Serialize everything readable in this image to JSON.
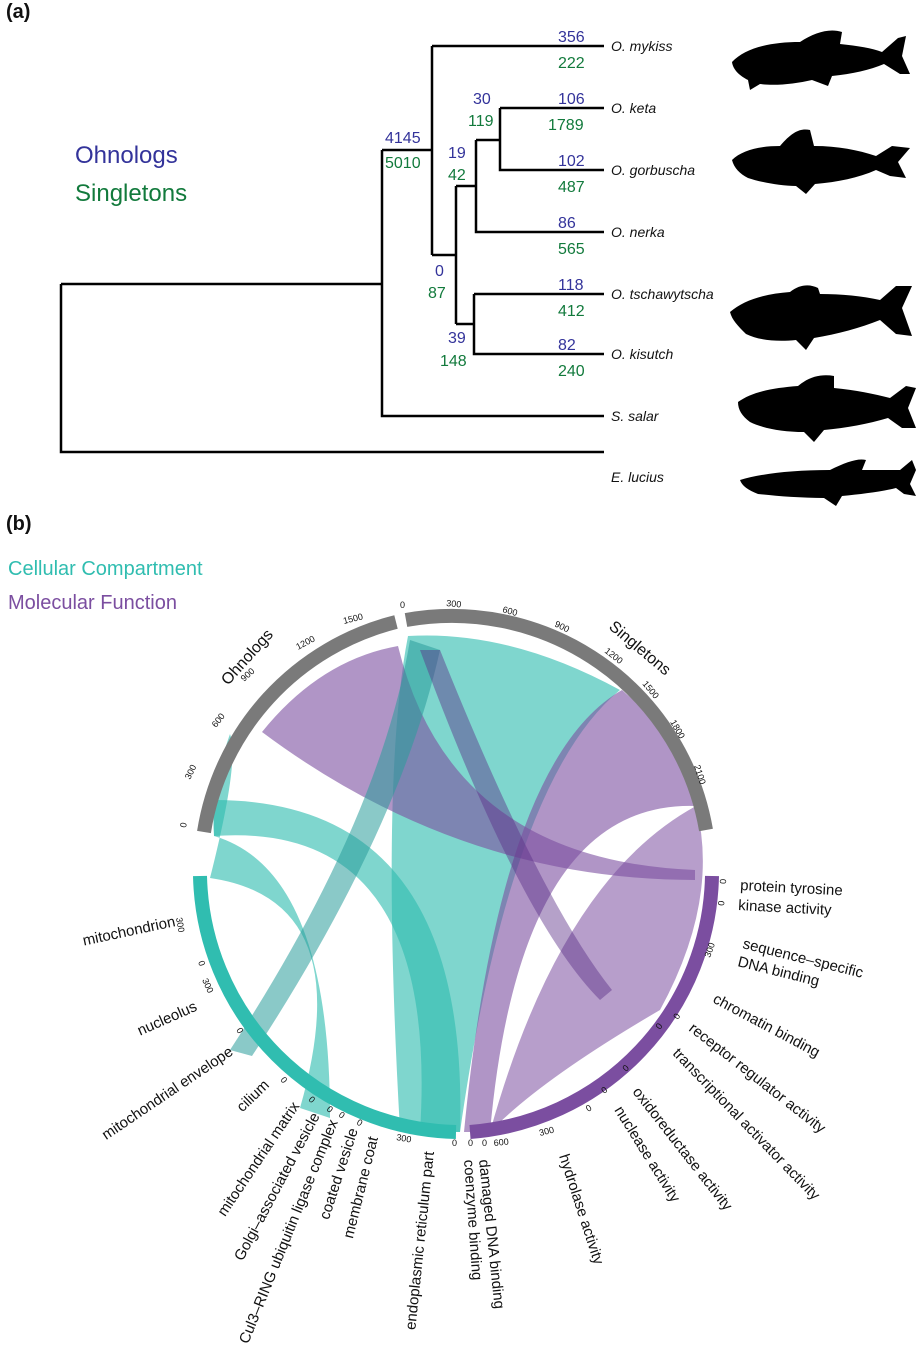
{
  "panel_a": {
    "label": "(a)",
    "legend": {
      "ohnologs": "Ohnologs",
      "singletons": "Singletons"
    },
    "colors": {
      "ohnologs": "#33339a",
      "singletons": "#127a3c"
    },
    "taxa": [
      "O. mykiss",
      "O. keta",
      "O. gorbuscha",
      "O. nerka",
      "O. tschawytscha",
      "O. kisutch",
      "S. salar",
      "E. lucius"
    ],
    "counts": [
      {
        "ohno": "356",
        "single": "222"
      },
      {
        "ohno": "106",
        "single": "1789"
      },
      {
        "ohno": "102",
        "single": "487"
      },
      {
        "ohno": "86",
        "single": "565"
      },
      {
        "ohno": "118",
        "single": "412"
      },
      {
        "ohno": "82",
        "single": "240"
      },
      {
        "ohno": "30",
        "single": "119"
      },
      {
        "ohno": "19",
        "single": "42"
      },
      {
        "ohno": "0",
        "single": "87"
      },
      {
        "ohno": "39",
        "single": "148"
      },
      {
        "ohno": "4145",
        "single": "5010"
      }
    ],
    "silhouette_icons": [
      "trout-silhouette",
      "pink-salmon-silhouette",
      "chinook-salmon-silhouette",
      "atlantic-salmon-silhouette",
      "pike-silhouette"
    ]
  },
  "panel_b": {
    "label": "(b)",
    "legend": {
      "cc": "Cellular Compartment",
      "mf": "Molecular Function"
    },
    "colors": {
      "cc": "#30bdb0",
      "mf": "#7b4ea0",
      "track": "#7a7a7a"
    },
    "sectors": {
      "ohnologs": "Ohnologs",
      "singletons": "Singletons"
    },
    "ohnolog_ticks": [
      "0",
      "300",
      "600",
      "900",
      "1200",
      "1500"
    ],
    "singleton_ticks": [
      "0",
      "300",
      "600",
      "900",
      "1200",
      "1500",
      "1800",
      "2100"
    ],
    "small_ticks": [
      "300",
      "0",
      "300",
      "0",
      "0",
      "0",
      "0",
      "0",
      "0",
      "300",
      "0",
      "0",
      "0",
      "600",
      "300",
      "0",
      "0",
      "0",
      "0",
      "0",
      "300",
      "0",
      "0"
    ],
    "cc_terms": [
      "mitochondrion",
      "nucleolus",
      "mitochondrial envelope",
      "cilium",
      "mitochondrial matrix",
      "Golgi–associated vesicle",
      "Cul3–RING ubiquitin ligase complex",
      "coated vesicle",
      "membrane coat",
      "endoplasmic reticulum part"
    ],
    "mf_terms": [
      "damaged DNA binding",
      "coenzyme binding",
      "hydrolase activity",
      "nuclease activity",
      "oxidoreductase activity",
      "transcriptional activator activity",
      "receptor regulator activity",
      "chromatin binding",
      "sequence–specific",
      "DNA binding",
      "protein tyrosine",
      "kinase activity"
    ]
  }
}
